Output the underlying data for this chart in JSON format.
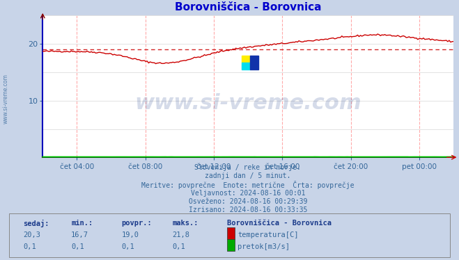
{
  "title": "Borovniščica - Borovnica",
  "title_color": "#0000cc",
  "fig_bg_color": "#c8d4e8",
  "plot_bg_color": "#ffffff",
  "x_ticks_labels": [
    "čet 04:00",
    "čet 08:00",
    "čet 12:00",
    "čet 16:00",
    "čet 20:00",
    "pet 00:00"
  ],
  "x_ticks_pos": [
    4,
    8,
    12,
    16,
    20,
    24
  ],
  "xlim": [
    2,
    26
  ],
  "ylim_min": 0,
  "ylim_max": 25,
  "y_ticks": [
    10,
    20
  ],
  "temp_color": "#cc0000",
  "flow_color": "#00cc00",
  "avg_value": 19.0,
  "avg_color": "#cc0000",
  "vgrid_color": "#ffaaaa",
  "hgrid_color": "#dddddd",
  "watermark_text": "www.si-vreme.com",
  "watermark_color": "#1a3a8a",
  "watermark_alpha": 0.18,
  "info_lines": [
    "Slovenija / reke in morje.",
    "zadnji dan / 5 minut.",
    "Meritve: povprečne  Enote: metrične  Črta: povprečje",
    "Veljavnost: 2024-08-16 00:01",
    "Osveženo: 2024-08-16 00:29:39",
    "Izrisano: 2024-08-16 00:33:35"
  ],
  "info_color": "#336699",
  "legend_title": "Borovniščica - Borovnica",
  "legend_items": [
    {
      "label": "temperatura[C]",
      "color": "#cc0000"
    },
    {
      "label": "pretok[m3/s]",
      "color": "#00aa00"
    }
  ],
  "stats_headers": [
    "sedaj:",
    "min.:",
    "povpr.:",
    "maks.:"
  ],
  "stats_temp": [
    "20,3",
    "16,7",
    "19,0",
    "21,8"
  ],
  "stats_flow": [
    "0,1",
    "0,1",
    "0,1",
    "0,1"
  ],
  "left_text": "www.si-vreme.com",
  "axis_text_color": "#336699",
  "bottom_spine_color": "#006600",
  "left_spine_color": "#0000bb",
  "right_arrow_color": "#cc0000",
  "top_arrow_color": "#880000"
}
